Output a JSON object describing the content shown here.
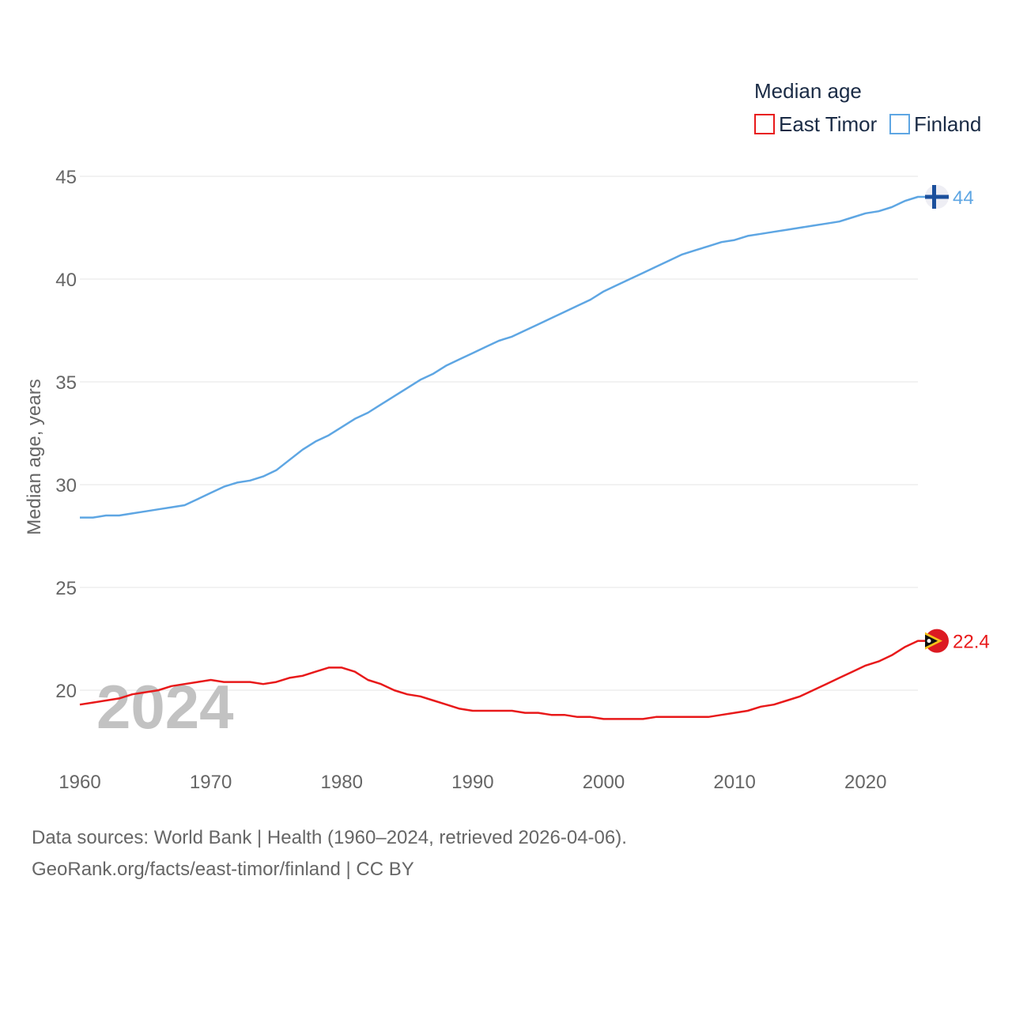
{
  "chart_data": {
    "type": "line",
    "title": "Median age",
    "ylabel": "Median age, years",
    "xlabel": "",
    "xlim": [
      1960,
      2024
    ],
    "ylim": [
      16.5,
      46.2
    ],
    "yticks": [
      20,
      25,
      30,
      35,
      40,
      45
    ],
    "xticks": [
      1960,
      1970,
      1980,
      1990,
      2000,
      2010,
      2020
    ],
    "grid": true,
    "current_year": "2024",
    "legend_position": "top-right",
    "series": [
      {
        "name": "East Timor",
        "color": "#e8191a",
        "end_label": "22.4",
        "flag_icon": "east-timor-flag-icon",
        "x": [
          1960,
          1961,
          1962,
          1963,
          1964,
          1965,
          1966,
          1967,
          1968,
          1969,
          1970,
          1971,
          1972,
          1973,
          1974,
          1975,
          1976,
          1977,
          1978,
          1979,
          1980,
          1981,
          1982,
          1983,
          1984,
          1985,
          1986,
          1987,
          1988,
          1989,
          1990,
          1991,
          1992,
          1993,
          1994,
          1995,
          1996,
          1997,
          1998,
          1999,
          2000,
          2001,
          2002,
          2003,
          2004,
          2005,
          2006,
          2007,
          2008,
          2009,
          2010,
          2011,
          2012,
          2013,
          2014,
          2015,
          2016,
          2017,
          2018,
          2019,
          2020,
          2021,
          2022,
          2023,
          2024
        ],
        "values": [
          19.3,
          19.4,
          19.5,
          19.6,
          19.8,
          19.9,
          20.0,
          20.2,
          20.3,
          20.4,
          20.5,
          20.4,
          20.4,
          20.4,
          20.3,
          20.4,
          20.6,
          20.7,
          20.9,
          21.1,
          21.1,
          20.9,
          20.5,
          20.3,
          20.0,
          19.8,
          19.7,
          19.5,
          19.3,
          19.1,
          19.0,
          19.0,
          19.0,
          19.0,
          18.9,
          18.9,
          18.8,
          18.8,
          18.7,
          18.7,
          18.6,
          18.6,
          18.6,
          18.6,
          18.7,
          18.7,
          18.7,
          18.7,
          18.7,
          18.8,
          18.9,
          19.0,
          19.2,
          19.3,
          19.5,
          19.7,
          20.0,
          20.3,
          20.6,
          20.9,
          21.2,
          21.4,
          21.7,
          22.1,
          22.4
        ]
      },
      {
        "name": "Finland",
        "color": "#5ea6e3",
        "end_label": "44",
        "flag_icon": "finland-flag-icon",
        "x": [
          1960,
          1961,
          1962,
          1963,
          1964,
          1965,
          1966,
          1967,
          1968,
          1969,
          1970,
          1971,
          1972,
          1973,
          1974,
          1975,
          1976,
          1977,
          1978,
          1979,
          1980,
          1981,
          1982,
          1983,
          1984,
          1985,
          1986,
          1987,
          1988,
          1989,
          1990,
          1991,
          1992,
          1993,
          1994,
          1995,
          1996,
          1997,
          1998,
          1999,
          2000,
          2001,
          2002,
          2003,
          2004,
          2005,
          2006,
          2007,
          2008,
          2009,
          2010,
          2011,
          2012,
          2013,
          2014,
          2015,
          2016,
          2017,
          2018,
          2019,
          2020,
          2021,
          2022,
          2023,
          2024
        ],
        "values": [
          28.4,
          28.4,
          28.5,
          28.5,
          28.6,
          28.7,
          28.8,
          28.9,
          29.0,
          29.3,
          29.6,
          29.9,
          30.1,
          30.2,
          30.4,
          30.7,
          31.2,
          31.7,
          32.1,
          32.4,
          32.8,
          33.2,
          33.5,
          33.9,
          34.3,
          34.7,
          35.1,
          35.4,
          35.8,
          36.1,
          36.4,
          36.7,
          37.0,
          37.2,
          37.5,
          37.8,
          38.1,
          38.4,
          38.7,
          39.0,
          39.4,
          39.7,
          40.0,
          40.3,
          40.6,
          40.9,
          41.2,
          41.4,
          41.6,
          41.8,
          41.9,
          42.1,
          42.2,
          42.3,
          42.4,
          42.5,
          42.6,
          42.7,
          42.8,
          43.0,
          43.2,
          43.3,
          43.5,
          43.8,
          44.0
        ]
      }
    ]
  },
  "footer": {
    "sources": "Data sources: World Bank | Health (1960–2024, retrieved 2026-04-06).",
    "link": "GeoRank.org/facts/east-timor/finland | CC BY"
  }
}
